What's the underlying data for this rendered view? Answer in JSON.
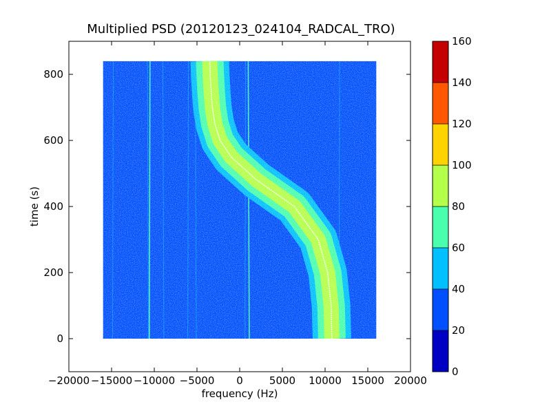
{
  "chart_data": {
    "type": "heatmap",
    "title": "Multiplied PSD (20120123_024104_RADCAL_TRO)",
    "xlabel": "frequency (Hz)",
    "ylabel": "time (s)",
    "xlim": [
      -20000,
      20000
    ],
    "ylim": [
      -100,
      900
    ],
    "xticks": [
      -20000,
      -15000,
      -10000,
      -5000,
      0,
      5000,
      10000,
      15000,
      20000
    ],
    "xtick_labels": [
      "−20000",
      "−15000",
      "−10000",
      "−5000",
      "0",
      "5000",
      "10000",
      "15000",
      "20000"
    ],
    "yticks": [
      0,
      200,
      400,
      600,
      800
    ],
    "ytick_labels": [
      "0",
      "200",
      "400",
      "600",
      "800"
    ],
    "data_extent": {
      "x": [
        -16000,
        16000
      ],
      "y": [
        0,
        840
      ]
    },
    "background_level": "20–40",
    "track": {
      "description": "S-shaped Doppler trace",
      "time": [
        0,
        100,
        200,
        300,
        400,
        480,
        550,
        600,
        650,
        700,
        750,
        800,
        840
      ],
      "center_freq": [
        10800,
        10700,
        10300,
        9200,
        6400,
        2000,
        -1000,
        -2300,
        -2900,
        -3200,
        -3350,
        -3450,
        -3500
      ],
      "peak_level": "80–100",
      "band_levels": [
        "40–60",
        "60–80",
        "80–100"
      ]
    },
    "vertical_lines_freq": [
      -14800,
      -10800,
      -10500,
      -9000,
      -6000,
      -5200,
      700,
      1000,
      11700
    ],
    "colorbar": {
      "min": 0,
      "max": 160,
      "ticks": [
        "0",
        "20",
        "40",
        "60",
        "80",
        "100",
        "120",
        "140",
        "160"
      ],
      "colors": [
        "#0000c4",
        "#0050ff",
        "#00c0ff",
        "#49ffad",
        "#b4ff49",
        "#ffd300",
        "#ff5800",
        "#c40000"
      ]
    },
    "grid": false
  }
}
